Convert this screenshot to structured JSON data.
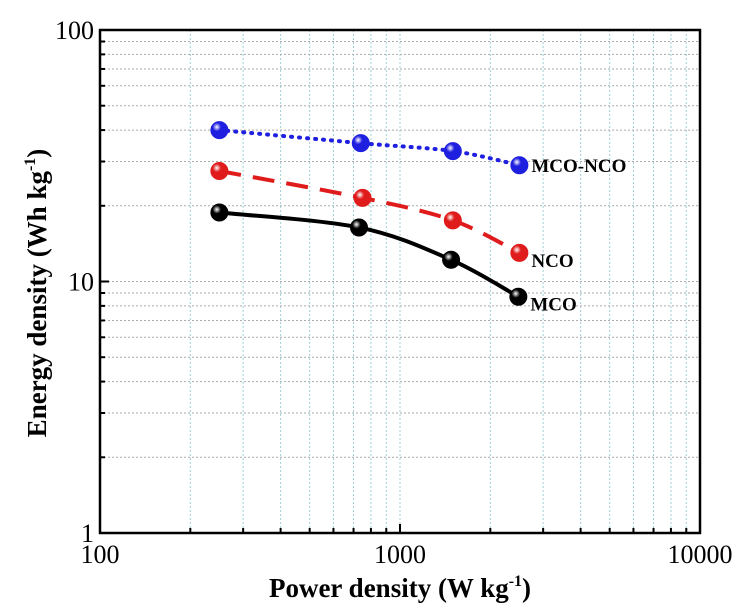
{
  "chart_data": {
    "type": "line",
    "x_scale": "log",
    "y_scale": "log",
    "xlim": [
      100,
      10000
    ],
    "ylim": [
      1,
      100
    ],
    "x_ticks": [
      "100",
      "1000",
      "10000"
    ],
    "y_ticks": [
      "1",
      "10",
      "100"
    ],
    "xlabel_main": "Power density (W kg",
    "xlabel_sup": "-1",
    "xlabel_end": ")",
    "ylabel_main": "Energy density (Wh kg",
    "ylabel_sup": "-1",
    "ylabel_end": ")",
    "grid": true,
    "series": [
      {
        "name": "MCO-NCO",
        "color": "#1f1fe0",
        "style": "dotted",
        "x": [
          250,
          740,
          1500,
          2500
        ],
        "y": [
          40,
          35.5,
          33,
          29
        ]
      },
      {
        "name": "NCO",
        "color": "#e01b1b",
        "style": "dashed",
        "x": [
          250,
          750,
          1500,
          2500
        ],
        "y": [
          27.5,
          21.5,
          17.5,
          13
        ]
      },
      {
        "name": "MCO",
        "color": "#000000",
        "style": "solid",
        "x": [
          250,
          730,
          1480,
          2480
        ],
        "y": [
          18.8,
          16.4,
          12.2,
          8.7
        ]
      }
    ]
  }
}
